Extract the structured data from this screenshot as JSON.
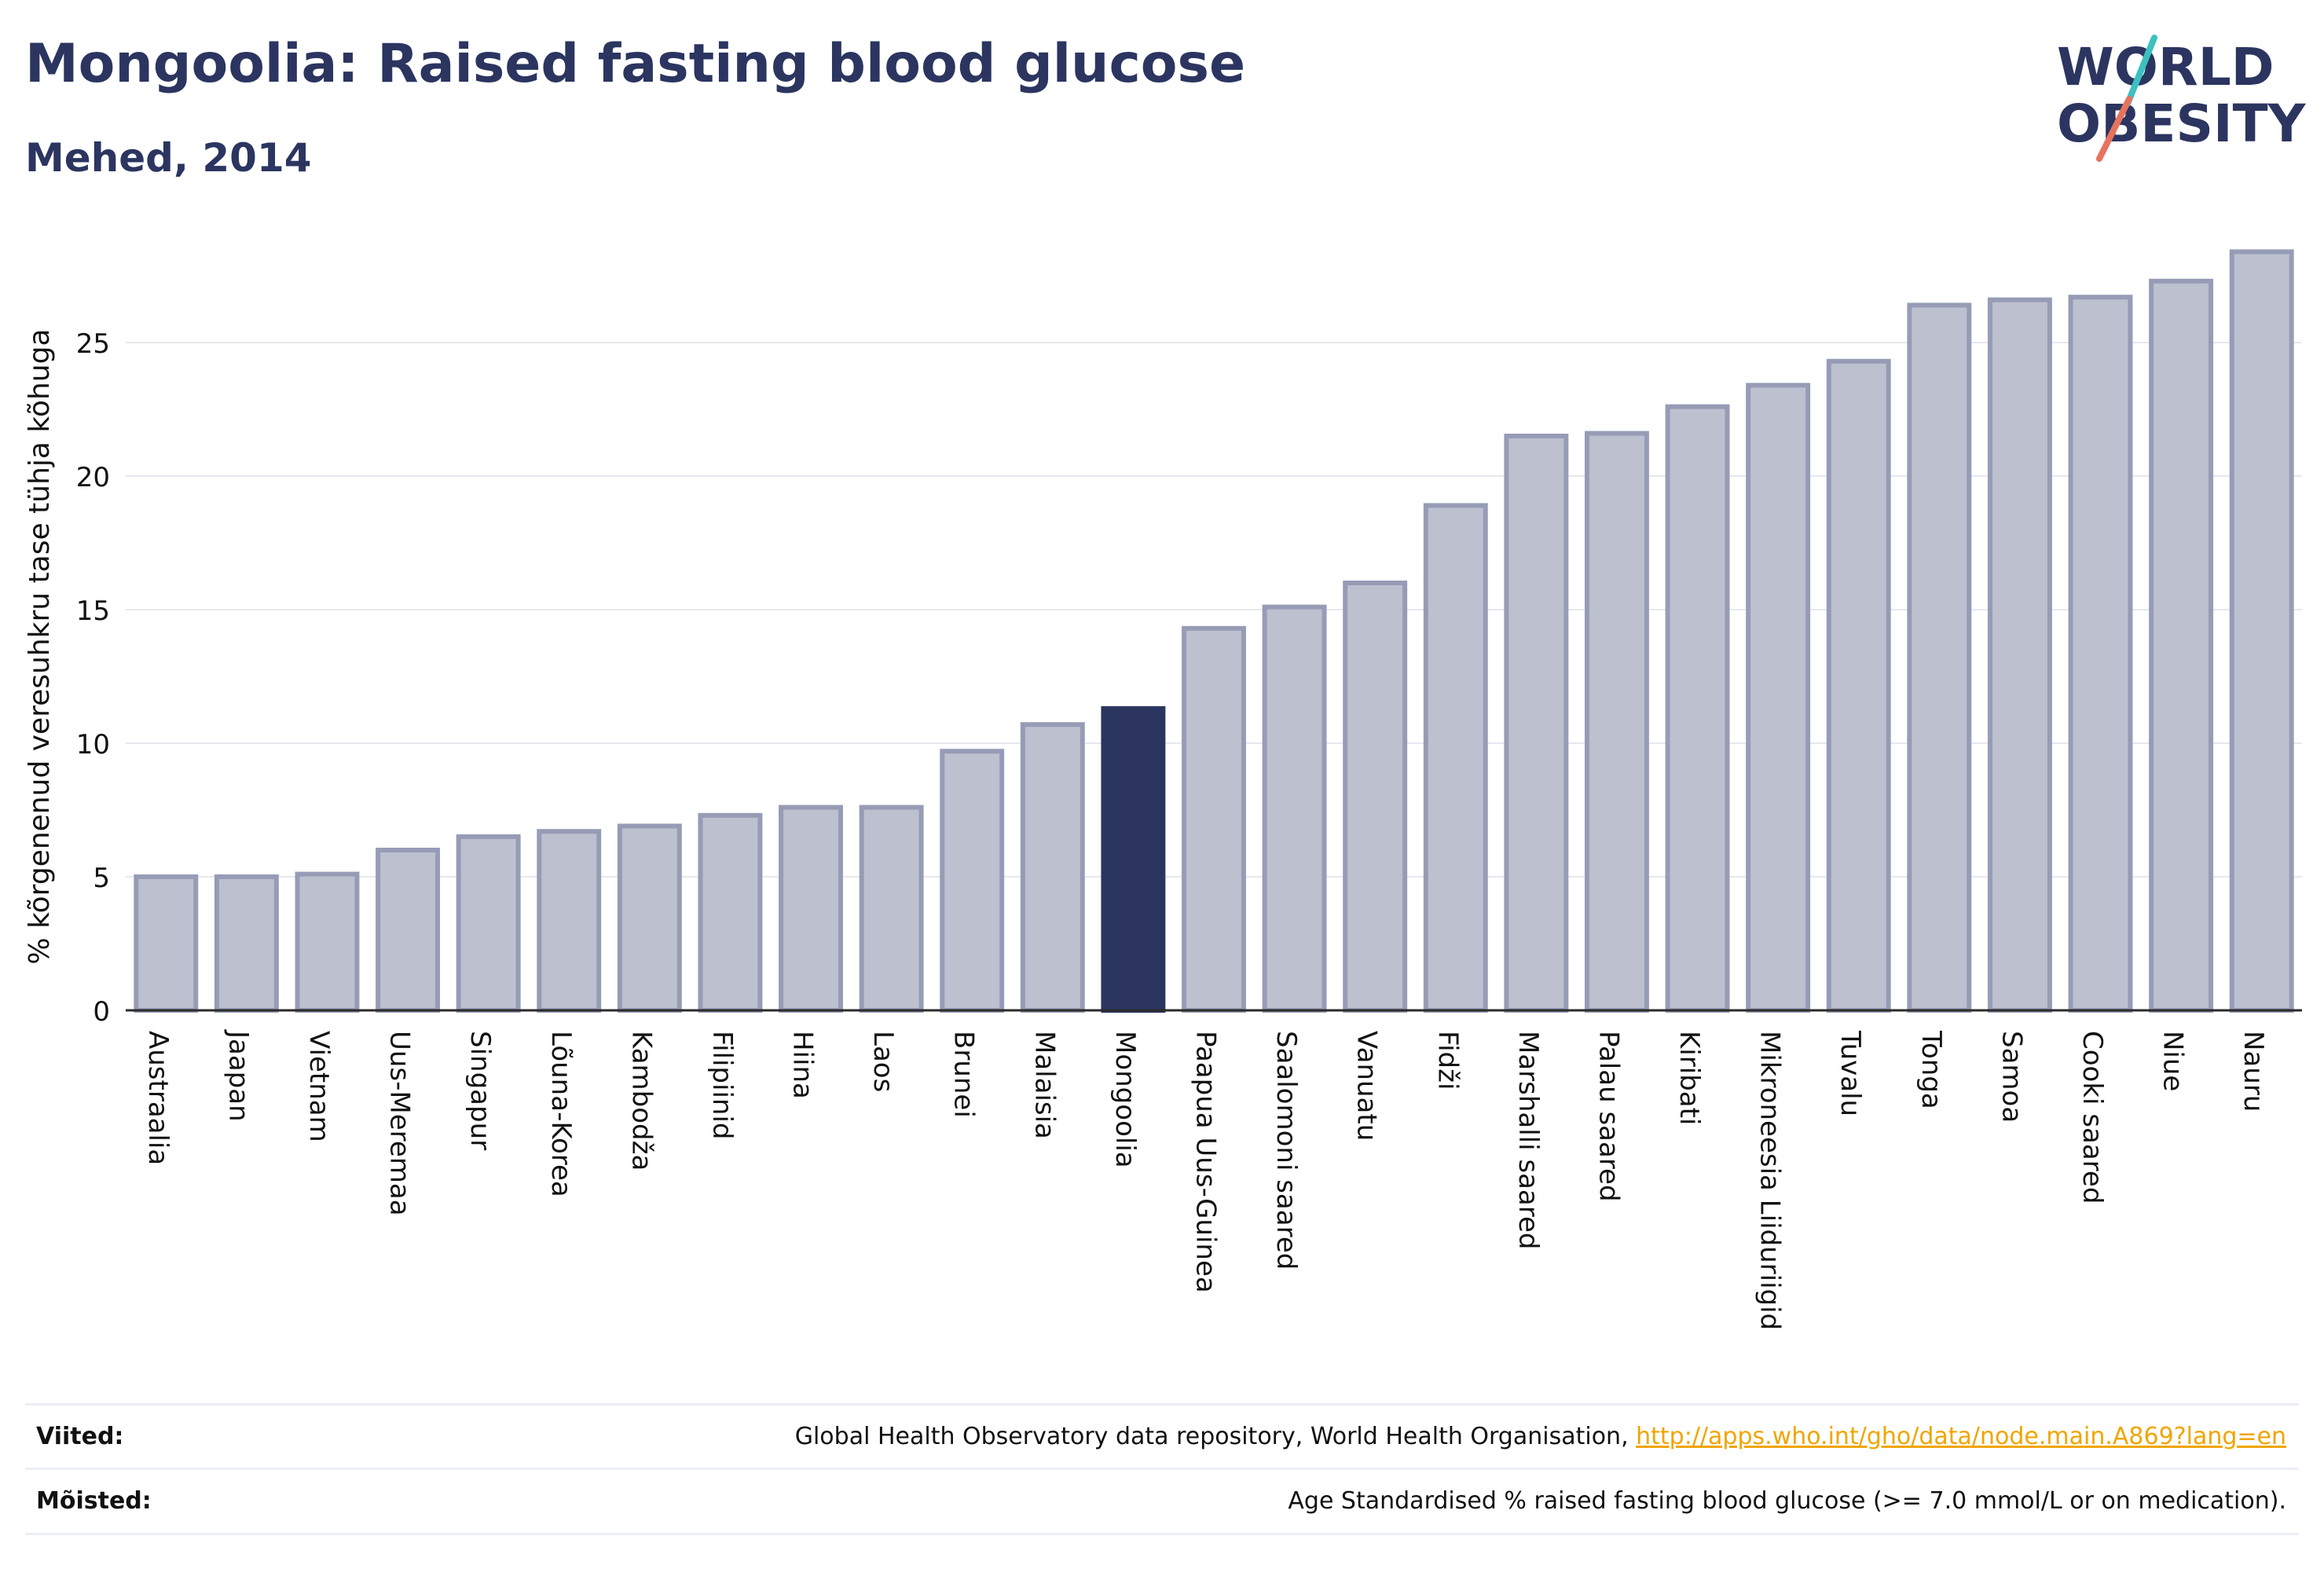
{
  "title": "Mongoolia: Raised fasting blood glucose",
  "subtitle": "Mehed, 2014",
  "logo": {
    "line1": "WORLD",
    "line2": "OBESITY"
  },
  "colors": {
    "highlight": "#2b3560",
    "bar_fill": "#bcc0cf",
    "bar_stroke": "#979cb6",
    "accent_teal": "#3cc0c0",
    "accent_coral": "#e8725e",
    "link": "#f0a500"
  },
  "chart_data": {
    "type": "bar",
    "title": "Mongoolia: Raised fasting blood glucose",
    "subtitle": "Mehed, 2014",
    "ylabel": "% kõrgenenud veresuhkru tase tühja kõhuga",
    "xlabel": "",
    "ylim": [
      0,
      29
    ],
    "yticks": [
      0,
      5,
      10,
      15,
      20,
      25
    ],
    "grid": true,
    "highlight": "Mongoolia",
    "categories": [
      "Austraalia",
      "Jaapan",
      "Vietnam",
      "Uus-Meremaa",
      "Singapur",
      "Lõuna-Korea",
      "Kambodža",
      "Filipiinid",
      "Hiina",
      "Laos",
      "Brunei",
      "Malaisia",
      "Mongoolia",
      "Paapua Uus-Guinea",
      "Saalomoni saared",
      "Vanuatu",
      "Fidži",
      "Marshalli saared",
      "Palau saared",
      "Kiribati",
      "Mikroneesia Liiduriigid",
      "Tuvalu",
      "Tonga",
      "Samoa",
      "Cooki saared",
      "Niue",
      "Nauru"
    ],
    "values": [
      5.0,
      5.0,
      5.1,
      6.0,
      6.5,
      6.7,
      6.9,
      7.3,
      7.6,
      7.6,
      9.7,
      10.7,
      11.3,
      14.3,
      15.1,
      16.0,
      18.9,
      21.5,
      21.6,
      22.6,
      23.4,
      24.3,
      26.4,
      26.6,
      26.7,
      27.3,
      28.4
    ]
  },
  "footer": {
    "sources_label": "Viited:",
    "sources_text": "Global Health Observatory data repository, World Health Organisation, ",
    "sources_link": "http://apps.who.int/gho/data/node.main.A869?lang=en",
    "definitions_label": "Mõisted:",
    "definitions_text": "Age Standardised % raised fasting blood glucose (>= 7.0 mmol/L or on medication)."
  }
}
